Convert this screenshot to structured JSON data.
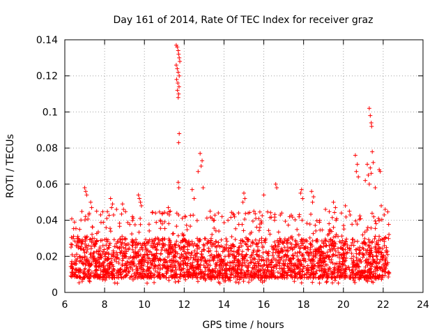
{
  "chart_data": {
    "type": "scatter",
    "title": "Day 161 of 2014, Rate Of TEC Index for receiver graz",
    "xlabel": "GPS time / hours",
    "ylabel": "ROTI / TECUs",
    "xlim": [
      6,
      24
    ],
    "ylim": [
      0,
      0.14
    ],
    "xticks": [
      6,
      8,
      10,
      12,
      14,
      16,
      18,
      20,
      22,
      24
    ],
    "yticks": [
      0,
      0.02,
      0.04,
      0.06,
      0.08,
      0.1,
      0.12,
      0.14
    ],
    "ytick_labels": [
      "0",
      "0.02",
      "0.04",
      "0.06",
      "0.08",
      "0.1",
      "0.12",
      "0.14"
    ],
    "grid": true,
    "marker": "+",
    "color": "#ff0000",
    "x_coverage": [
      6.3,
      22.3
    ],
    "series": [
      {
        "name": "ROTI",
        "x": [
          11.6,
          11.65,
          11.7,
          11.72,
          11.75,
          11.78,
          11.6,
          11.65,
          11.7,
          11.75,
          11.62,
          11.68,
          11.74,
          11.66,
          11.72,
          11.7,
          11.75,
          11.72,
          11.7,
          11.73,
          21.3,
          21.35,
          21.4,
          21.42,
          21.45,
          21.5,
          21.35,
          21.4,
          21.8,
          21.85,
          21.9,
          21.2,
          21.25,
          21.3,
          21.1,
          20.6,
          20.7,
          20.65,
          20.75,
          21.6,
          12.8,
          12.9,
          12.85,
          12.7,
          12.95,
          15.0,
          15.05,
          14.95,
          16.6,
          16.65,
          16.0,
          17.9,
          17.85,
          17.95,
          18.4,
          18.5,
          18.45,
          7.0,
          7.05,
          7.1,
          7.3,
          7.35,
          8.3,
          8.4,
          8.35,
          8.9,
          8.95,
          9.7,
          9.75,
          9.8,
          9.85,
          11.2,
          11.3,
          11.25,
          13.3,
          13.4,
          13.9,
          14.2,
          14.5,
          15.5,
          15.6,
          16.9,
          17.3,
          19.1,
          19.5,
          19.6,
          19.9,
          20.1,
          20.3,
          22.1,
          22.05,
          12.4,
          12.5,
          10.8,
          10.9,
          7.6,
          7.8,
          8.6,
          6.5,
          7.0,
          7.5,
          8.0,
          8.5,
          9.0,
          9.5,
          10.0,
          10.5,
          11.0,
          11.5,
          12.0,
          12.5,
          13.0,
          13.5,
          14.0,
          14.5,
          15.0,
          15.5,
          16.0,
          16.5,
          17.0,
          17.5,
          18.0,
          18.5,
          19.0,
          19.5,
          20.0,
          20.5,
          21.0,
          21.5,
          22.0
        ],
        "y": [
          0.137,
          0.136,
          0.134,
          0.132,
          0.13,
          0.128,
          0.126,
          0.124,
          0.122,
          0.12,
          0.118,
          0.116,
          0.114,
          0.112,
          0.11,
          0.108,
          0.088,
          0.083,
          0.061,
          0.058,
          0.102,
          0.098,
          0.094,
          0.092,
          0.078,
          0.072,
          0.069,
          0.066,
          0.068,
          0.067,
          0.048,
          0.071,
          0.065,
          0.06,
          0.062,
          0.076,
          0.071,
          0.067,
          0.064,
          0.058,
          0.077,
          0.073,
          0.07,
          0.067,
          0.058,
          0.055,
          0.052,
          0.05,
          0.06,
          0.058,
          0.054,
          0.057,
          0.055,
          0.052,
          0.056,
          0.053,
          0.05,
          0.058,
          0.056,
          0.054,
          0.05,
          0.047,
          0.052,
          0.049,
          0.047,
          0.049,
          0.046,
          0.054,
          0.052,
          0.05,
          0.048,
          0.047,
          0.045,
          0.043,
          0.045,
          0.041,
          0.042,
          0.04,
          0.043,
          0.045,
          0.041,
          0.044,
          0.042,
          0.046,
          0.05,
          0.047,
          0.044,
          0.048,
          0.045,
          0.046,
          0.043,
          0.057,
          0.052,
          0.04,
          0.038,
          0.045,
          0.043,
          0.046,
          0.02,
          0.022,
          0.019,
          0.021,
          0.018,
          0.02,
          0.019,
          0.018,
          0.017,
          0.018,
          0.02,
          0.019,
          0.018,
          0.019,
          0.02,
          0.018,
          0.019,
          0.02,
          0.019,
          0.018,
          0.019,
          0.02,
          0.019,
          0.018,
          0.02,
          0.019,
          0.021,
          0.019,
          0.02,
          0.021,
          0.02,
          0.019
        ]
      }
    ],
    "band": {
      "description": "dense cloud of observations",
      "typical_range": [
        0.008,
        0.03
      ],
      "upper_whisker": 0.045
    }
  }
}
